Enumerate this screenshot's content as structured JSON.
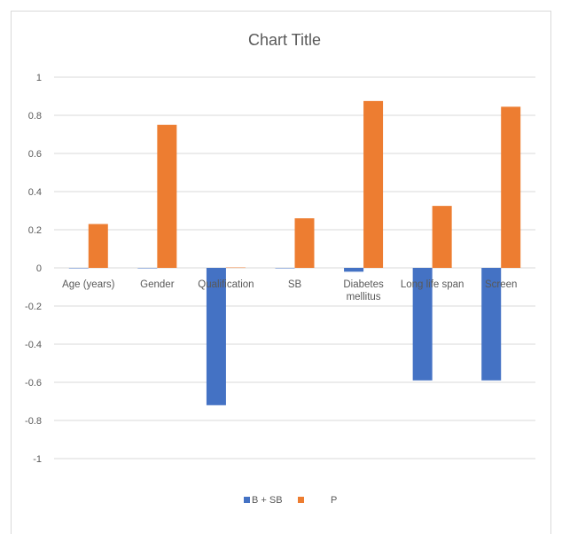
{
  "chart_data": {
    "type": "bar",
    "title": "Chart Title",
    "categories": [
      "Age (years)",
      "Gender",
      "Qualification",
      "SB",
      "Diabetes mellitus",
      "Long life span",
      "Screen"
    ],
    "series": [
      {
        "name": "B + SB",
        "color": "#4472C4",
        "values": [
          0,
          0,
          -0.72,
          0,
          -0.02,
          -0.59,
          -0.59
        ]
      },
      {
        "name": "P",
        "color": "#ED7D31",
        "values": [
          0.23,
          0.75,
          0.002,
          0.26,
          0.875,
          0.325,
          0.845
        ]
      }
    ],
    "ylim": [
      -1,
      1
    ],
    "yticks": [
      "1",
      "0.8",
      "0.6",
      "0.4",
      "0.2",
      "0",
      "-0.2",
      "-0.4",
      "-0.6",
      "-0.8",
      "-1"
    ],
    "grid": true,
    "legend": "bottom"
  }
}
